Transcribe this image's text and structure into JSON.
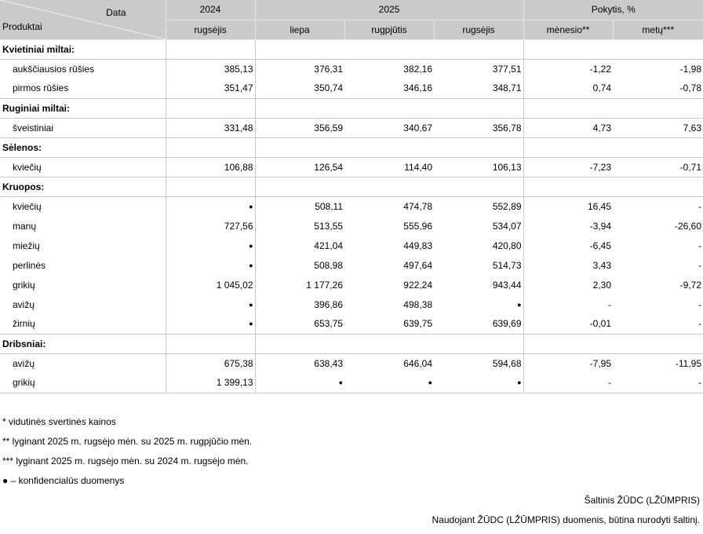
{
  "header": {
    "corner_top": "Data",
    "corner_bottom": "Produktai",
    "years": [
      "2024",
      "2025",
      "Pokytis, %"
    ],
    "months": [
      "rugsėjis",
      "liepa",
      "rugpjūtis",
      "rugsėjis",
      "mėnesio**",
      "metų***"
    ]
  },
  "sections": [
    {
      "title": "Kvietiniai miltai:",
      "rows": [
        {
          "name": "aukščiausios rūšies",
          "values": [
            "385,13",
            "376,31",
            "382,16",
            "377,51",
            "-1,22",
            "-1,98"
          ]
        },
        {
          "name": "pirmos rūšies",
          "values": [
            "351,47",
            "350,74",
            "346,16",
            "348,71",
            "0,74",
            "-0,78"
          ]
        }
      ]
    },
    {
      "title": "Ruginiai miltai:",
      "rows": [
        {
          "name": "šveistiniai",
          "values": [
            "331,48",
            "356,59",
            "340,67",
            "356,78",
            "4,73",
            "7,63"
          ]
        }
      ]
    },
    {
      "title": "Sėlenos:",
      "rows": [
        {
          "name": "kviečių",
          "values": [
            "106,88",
            "126,54",
            "114,40",
            "106,13",
            "-7,23",
            "-0,71"
          ]
        }
      ]
    },
    {
      "title": "Kruopos:",
      "rows": [
        {
          "name": "kviečių",
          "values": [
            "●",
            "508,11",
            "474,78",
            "552,89",
            "16,45",
            "-"
          ]
        },
        {
          "name": "manų",
          "values": [
            "727,56",
            "513,55",
            "555,96",
            "534,07",
            "-3,94",
            "-26,60"
          ]
        },
        {
          "name": "miežių",
          "values": [
            "●",
            "421,04",
            "449,83",
            "420,80",
            "-6,45",
            "-"
          ]
        },
        {
          "name": "perlinės",
          "values": [
            "●",
            "508,98",
            "497,64",
            "514,73",
            "3,43",
            "-"
          ]
        },
        {
          "name": "grikių",
          "values": [
            "1 045,02",
            "1 177,26",
            "922,24",
            "943,44",
            "2,30",
            "-9,72"
          ]
        },
        {
          "name": "avižų",
          "values": [
            "●",
            "396,86",
            "498,38",
            "●",
            "-",
            "-"
          ]
        },
        {
          "name": "žirnių",
          "values": [
            "●",
            "653,75",
            "639,75",
            "639,69",
            "-0,01",
            "-"
          ]
        }
      ]
    },
    {
      "title": "Dribsniai:",
      "rows": [
        {
          "name": "avižų",
          "values": [
            "675,38",
            "638,43",
            "646,04",
            "594,68",
            "-7,95",
            "-11,95"
          ]
        },
        {
          "name": "grikių",
          "values": [
            "1 399,13",
            "●",
            "●",
            "●",
            "-",
            "-"
          ]
        }
      ]
    }
  ],
  "notes": [
    "*  vidutinės svertinės kainos",
    "** lyginant  2025 m. rugsėjo mėn. su 2025 m. rugpjūčio mėn.",
    "*** lyginant   2025 m. rugsėjo mėn. su  2024 m. rugsėjo mėn.",
    "● – konfidencialūs duomenys"
  ],
  "source": [
    "Šaltinis ŽŪDC (LŽŪMPRIS)",
    "Naudojant ŽŪDC (LŽŪMPRIS) duomenis, būtina nurodyti šaltinį."
  ]
}
